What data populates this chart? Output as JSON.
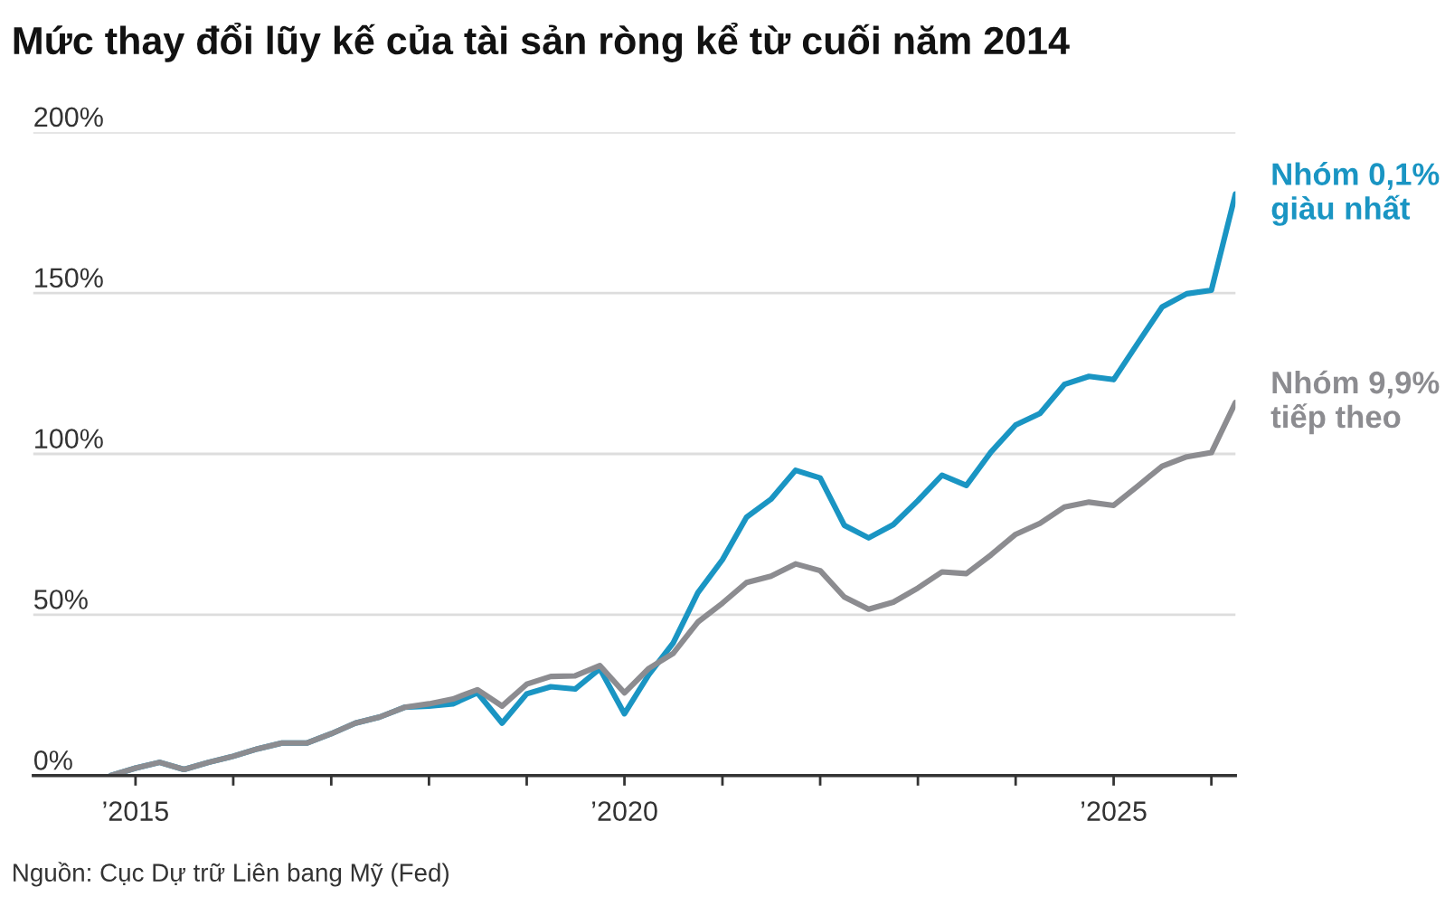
{
  "chart_data": {
    "type": "line",
    "title": "Mức thay đổi lũy kế của tài sản ròng kể từ cuối năm 2014",
    "x": [
      "2014-10",
      "2015-01",
      "2015-04",
      "2015-07",
      "2015-10",
      "2016-01",
      "2016-04",
      "2016-07",
      "2016-10",
      "2017-01",
      "2017-04",
      "2017-07",
      "2017-10",
      "2018-01",
      "2018-04",
      "2018-07",
      "2018-10",
      "2019-01",
      "2019-04",
      "2019-07",
      "2019-10",
      "2020-01",
      "2020-04",
      "2020-07",
      "2020-10",
      "2021-01",
      "2021-04",
      "2021-07",
      "2021-10",
      "2022-01",
      "2022-04",
      "2022-07",
      "2022-10",
      "2023-01",
      "2023-04",
      "2023-07",
      "2023-10",
      "2024-01",
      "2024-04",
      "2024-07",
      "2024-10",
      "2025-01",
      "2025-04",
      "2025-07",
      "2025-10",
      "2026-01",
      "2026-04"
    ],
    "series": [
      {
        "name": "Nhóm 0,1% giàu nhất",
        "color": "#1a95c3",
        "values": [
          0,
          2.3,
          4.1,
          1.9,
          4.1,
          6,
          8.3,
          10.1,
          10.1,
          13,
          16.3,
          18.2,
          21.2,
          21.6,
          22.3,
          25.7,
          16.3,
          25.4,
          27.6,
          26.9,
          33.2,
          19.2,
          31.4,
          41.2,
          56.8,
          67.1,
          80.3,
          85.9,
          94.9,
          92.5,
          77.8,
          73.9,
          78,
          85.5,
          93.4,
          90.2,
          100.6,
          109,
          112.6,
          121.6,
          124.1,
          123.1,
          134.4,
          145.7,
          149.8,
          150.9,
          180.8
        ]
      },
      {
        "name": "Nhóm 9,9% tiếp theo",
        "color": "#8c8c90",
        "values": [
          0,
          2.3,
          4.1,
          1.9,
          4.1,
          6,
          8.3,
          10.1,
          10.1,
          13,
          16.3,
          18.2,
          21.2,
          22.3,
          23.8,
          26.7,
          21.6,
          28.4,
          30.8,
          31,
          34.2,
          25.7,
          33.3,
          38,
          47.7,
          53.6,
          60,
          62,
          65.8,
          63.7,
          55.5,
          51.7,
          53.9,
          58.3,
          63.3,
          62.8,
          68.6,
          75,
          78.4,
          83.5,
          85,
          84,
          90,
          96.2,
          99.1,
          100.4,
          116
        ]
      }
    ],
    "xlim": [
      "2013-12-15",
      "2026-04-01"
    ],
    "xticks": [
      {
        "value": "2015-01",
        "label": "’2015"
      },
      {
        "value": "2016-01",
        "label": null
      },
      {
        "value": "2017-01",
        "label": null
      },
      {
        "value": "2018-01",
        "label": null
      },
      {
        "value": "2019-01",
        "label": null
      },
      {
        "value": "2020-01",
        "label": "’2020"
      },
      {
        "value": "2021-01",
        "label": null
      },
      {
        "value": "2022-01",
        "label": null
      },
      {
        "value": "2023-01",
        "label": null
      },
      {
        "value": "2024-01",
        "label": null
      },
      {
        "value": "2025-01",
        "label": "’2025"
      },
      {
        "value": "2026-01",
        "label": null
      }
    ],
    "ylim": [
      0,
      200
    ],
    "yticks": [
      {
        "value": 0,
        "label": "0%"
      },
      {
        "value": 50,
        "label": "50%"
      },
      {
        "value": 100,
        "label": "100%"
      },
      {
        "value": 150,
        "label": "150%"
      },
      {
        "value": 200,
        "label": "200%"
      }
    ],
    "grid": "y",
    "legend": false,
    "marker": "none",
    "line_style": "solid",
    "annotations": [
      "Nguồn: Cục Dự trữ Liên bang Mỹ (Fed)"
    ]
  }
}
